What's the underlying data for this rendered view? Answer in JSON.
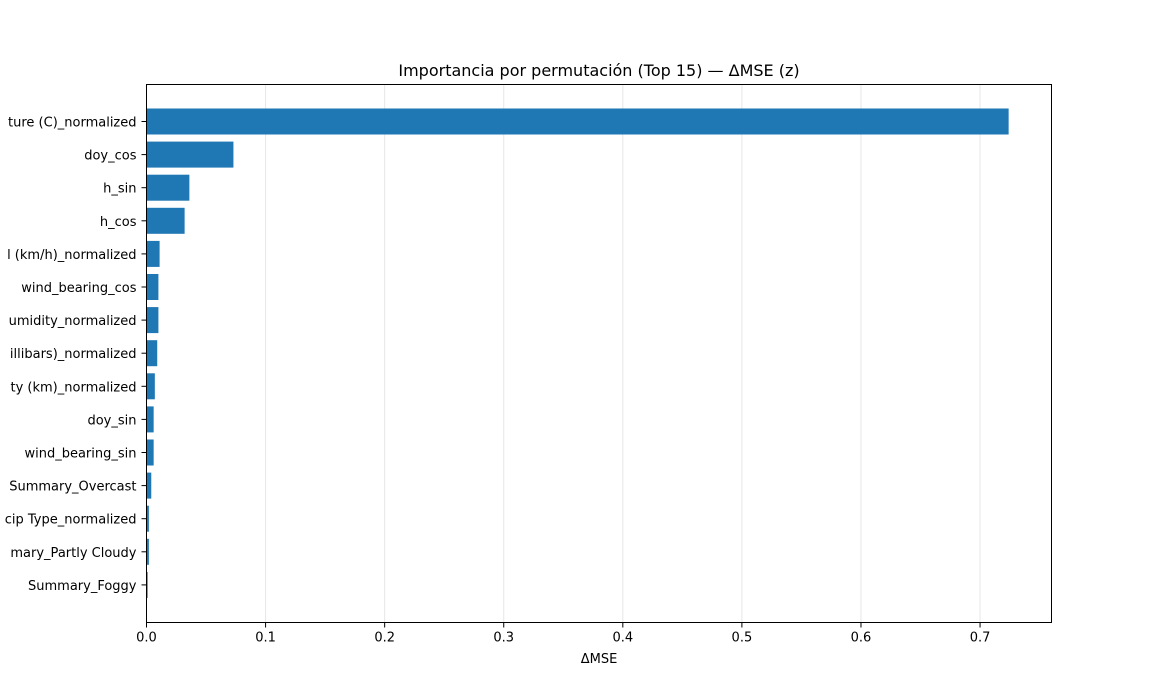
{
  "chart_data": {
    "type": "bar",
    "orientation": "horizontal",
    "title": "Importancia por permutación (Top 15) — ΔMSE (z)",
    "xlabel": "ΔMSE",
    "ylabel": "",
    "xlim": [
      0,
      0.76
    ],
    "xticks": [
      "0.0",
      "0.1",
      "0.2",
      "0.3",
      "0.4",
      "0.5",
      "0.6",
      "0.7"
    ],
    "grid": "x-axis vertical lines",
    "bar_color": "#1f77b4",
    "categories": [
      "ture (C)_normalized",
      "doy_cos",
      "h_sin",
      "h_cos",
      "l (km/h)_normalized",
      "wind_bearing_cos",
      "umidity_normalized",
      "illibars)_normalized",
      "ty (km)_normalized",
      "doy_sin",
      "wind_bearing_sin",
      "Summary_Overcast",
      "cip Type_normalized",
      "mary_Partly Cloudy",
      "Summary_Foggy"
    ],
    "values": [
      0.724,
      0.073,
      0.036,
      0.032,
      0.011,
      0.01,
      0.01,
      0.009,
      0.007,
      0.006,
      0.006,
      0.004,
      0.002,
      0.002,
      0.001
    ]
  }
}
